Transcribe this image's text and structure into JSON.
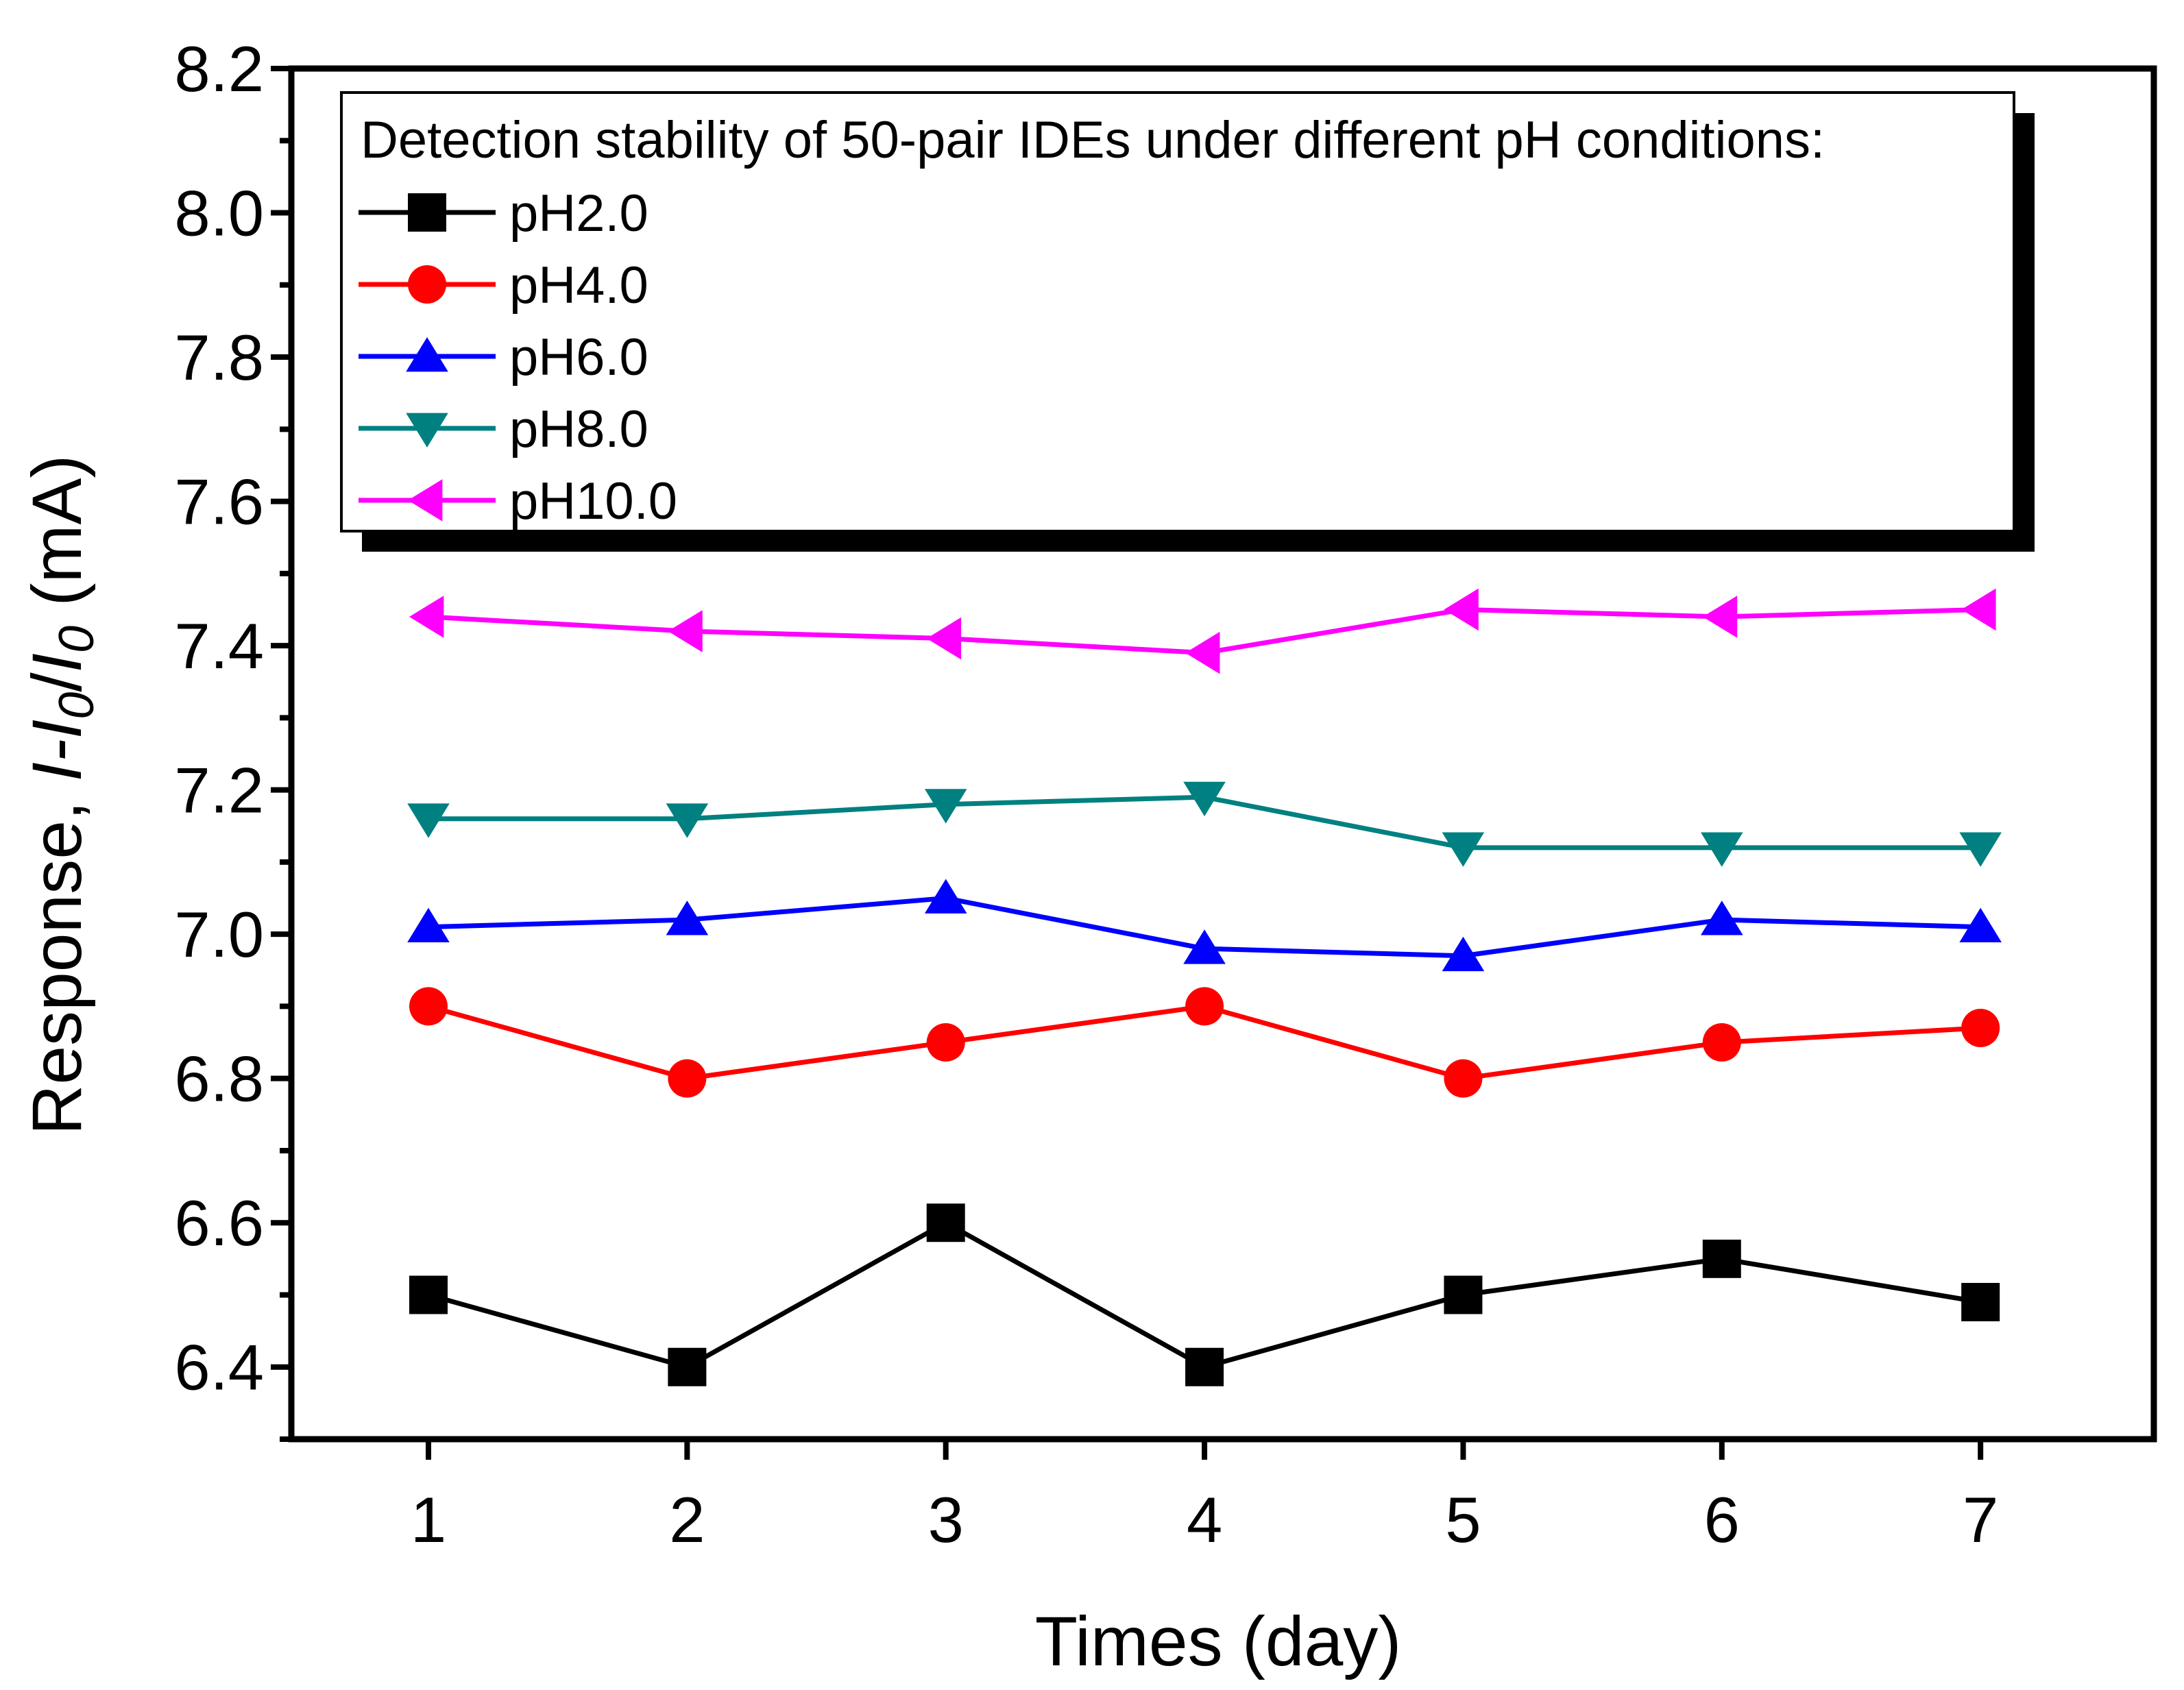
{
  "chart_data": {
    "type": "line",
    "title": "",
    "xlabel": "Times (day)",
    "ylabel": {
      "prefix": "Response, ",
      "formula": "I-I",
      "sub0": "0",
      "slash": "/",
      "denom": "I",
      "sub1": "0",
      "unit": " (mA)"
    },
    "x": [
      1,
      2,
      3,
      4,
      5,
      6,
      7
    ],
    "xlim": [
      0.47,
      7.67
    ],
    "ylim": [
      6.3,
      8.2
    ],
    "y_ticks": [
      "6.4",
      "6.6",
      "6.8",
      "7.0",
      "7.2",
      "7.4",
      "7.6",
      "7.8",
      "8.0",
      "8.2"
    ],
    "x_ticks": [
      "1",
      "2",
      "3",
      "4",
      "5",
      "6",
      "7"
    ],
    "legend": {
      "title": "Detection stability of 50-pair IDEs under different pH conditions:",
      "placement": "top-left"
    },
    "series": [
      {
        "name": "pH2.0",
        "color": "#000000",
        "marker": "square",
        "values": [
          6.5,
          6.4,
          6.6,
          6.4,
          6.5,
          6.55,
          6.49
        ]
      },
      {
        "name": "pH4.0",
        "color": "#ff0000",
        "marker": "circle",
        "values": [
          6.9,
          6.8,
          6.85,
          6.9,
          6.8,
          6.85,
          6.87
        ]
      },
      {
        "name": "pH6.0",
        "color": "#0000ff",
        "marker": "triangle-up",
        "values": [
          7.01,
          7.02,
          7.05,
          6.98,
          6.97,
          7.02,
          7.01
        ]
      },
      {
        "name": "pH8.0",
        "color": "#008080",
        "marker": "triangle-down",
        "values": [
          7.16,
          7.16,
          7.18,
          7.19,
          7.12,
          7.12,
          7.12
        ]
      },
      {
        "name": "pH10.0",
        "color": "#ff00ff",
        "marker": "triangle-left",
        "values": [
          7.44,
          7.42,
          7.41,
          7.39,
          7.45,
          7.44,
          7.45
        ]
      }
    ]
  }
}
